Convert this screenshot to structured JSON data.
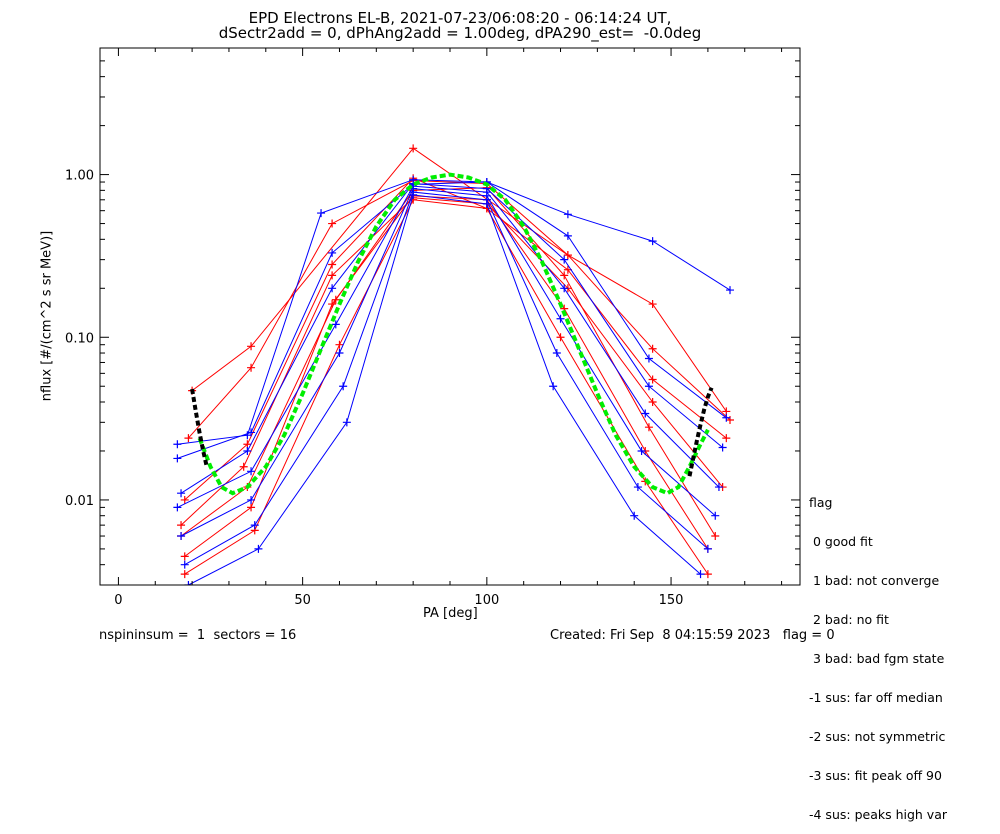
{
  "header": {
    "title_line1": "EPD Electrons EL-B, 2021-07-23/06:08:20 - 06:14:24 UT,",
    "title_line2": "dSectr2add = 0, dPhAng2add = 1.00deg, dPA290_est=  -0.0deg"
  },
  "footer": {
    "left": "nspininsum =  1  sectors = 16",
    "right": "Created: Fri Sep  8 04:15:59 2023   flag = 0"
  },
  "legend": {
    "title": "flag",
    "items": [
      " 0 good fit",
      " 1 bad: not converge",
      " 2 bad: no fit",
      " 3 bad: bad fgm state",
      "-1 sus: far off median",
      "-2 sus: not symmetric",
      "-3 sus: fit peak off 90",
      "-4 sus: peaks high var"
    ]
  },
  "chart_data": {
    "type": "line",
    "title": "EPD Electrons EL-B, 2021-07-23/06:08:20 - 06:14:24 UT,",
    "subtitle": "dSectr2add = 0, dPhAng2add = 1.00deg, dPA290_est=  -0.0deg",
    "xlabel": "PA [deg]",
    "ylabel": "nflux [#/(cm^2 s sr MeV)]",
    "xlim": [
      -5,
      185
    ],
    "ylim": [
      0.003,
      6
    ],
    "y_scale": "log",
    "x_ticks": [
      0,
      50,
      100,
      150
    ],
    "x_tick_labels": [
      "0",
      "50",
      "100",
      "150"
    ],
    "y_ticks": [
      0.01,
      0.1,
      1.0
    ],
    "y_tick_labels": [
      "0.01",
      "0.10",
      "1.00"
    ],
    "grid": false,
    "colors": {
      "blue": "#0000ff",
      "red": "#ff0000",
      "fit_green": "#00ee00",
      "fit_black": "#000000"
    },
    "fit_curve": {
      "color": "green",
      "style": "dashed",
      "pa": [
        22,
        25,
        28,
        31,
        35,
        40,
        45,
        50,
        55,
        60,
        65,
        70,
        75,
        80,
        85,
        90,
        95,
        100,
        105,
        110,
        115,
        120,
        125,
        130,
        135,
        140,
        145,
        149,
        152,
        155,
        158,
        160
      ],
      "flux": [
        0.024,
        0.016,
        0.012,
        0.011,
        0.012,
        0.016,
        0.025,
        0.045,
        0.085,
        0.16,
        0.29,
        0.48,
        0.7,
        0.87,
        0.96,
        1.0,
        0.96,
        0.87,
        0.7,
        0.48,
        0.29,
        0.16,
        0.085,
        0.045,
        0.025,
        0.016,
        0.012,
        0.011,
        0.012,
        0.016,
        0.022,
        0.027
      ]
    },
    "fit_tails": {
      "color": "black",
      "style": "dashed",
      "segments": [
        {
          "pa": [
            20,
            21,
            22,
            23,
            24
          ],
          "flux": [
            0.048,
            0.035,
            0.026,
            0.02,
            0.016
          ]
        },
        {
          "pa": [
            155,
            156,
            157,
            158,
            159,
            160,
            161
          ],
          "flux": [
            0.014,
            0.018,
            0.023,
            0.029,
            0.036,
            0.043,
            0.049
          ]
        }
      ]
    },
    "series": [
      {
        "color": "red",
        "pa": [
          20,
          36,
          80,
          122,
          145,
          165
        ],
        "flux": [
          0.047,
          0.088,
          1.45,
          0.32,
          0.16,
          0.035
        ]
      },
      {
        "color": "red",
        "pa": [
          19,
          36,
          58,
          80,
          100,
          122,
          145,
          166
        ],
        "flux": [
          0.024,
          0.065,
          0.5,
          0.92,
          0.88,
          0.32,
          0.085,
          0.031
        ]
      },
      {
        "color": "red",
        "pa": [
          18,
          35,
          58,
          80,
          100,
          122,
          145,
          165
        ],
        "flux": [
          0.01,
          0.022,
          0.28,
          0.95,
          0.62,
          0.26,
          0.055,
          0.024
        ]
      },
      {
        "color": "red",
        "pa": [
          17,
          34,
          58,
          80,
          100,
          122,
          145,
          164
        ],
        "flux": [
          0.007,
          0.016,
          0.24,
          0.72,
          0.66,
          0.2,
          0.04,
          0.012
        ]
      },
      {
        "color": "red",
        "pa": [
          17,
          35,
          59,
          80,
          100,
          121,
          144,
          162
        ],
        "flux": [
          0.006,
          0.012,
          0.17,
          0.8,
          0.83,
          0.24,
          0.028,
          0.006
        ]
      },
      {
        "color": "red",
        "pa": [
          18,
          36,
          58,
          80,
          100,
          121,
          143,
          160
        ],
        "flux": [
          0.0045,
          0.009,
          0.16,
          0.74,
          0.7,
          0.15,
          0.02,
          0.005
        ]
      },
      {
        "color": "red",
        "pa": [
          18,
          37,
          60,
          80,
          100,
          120,
          143,
          160
        ],
        "flux": [
          0.0035,
          0.0065,
          0.09,
          0.7,
          0.62,
          0.1,
          0.013,
          0.0035
        ]
      },
      {
        "color": "blue",
        "pa": [
          16,
          35,
          55,
          80,
          100,
          122,
          145,
          166
        ],
        "flux": [
          0.022,
          0.025,
          0.58,
          0.93,
          0.9,
          0.57,
          0.39,
          0.195
        ]
      },
      {
        "color": "blue",
        "pa": [
          16,
          36,
          58,
          80,
          100,
          122,
          144,
          165
        ],
        "flux": [
          0.018,
          0.026,
          0.33,
          0.87,
          0.9,
          0.42,
          0.074,
          0.032
        ]
      },
      {
        "color": "blue",
        "pa": [
          17,
          35,
          58,
          80,
          100,
          121,
          144,
          164
        ],
        "flux": [
          0.011,
          0.02,
          0.2,
          0.88,
          0.82,
          0.3,
          0.05,
          0.021
        ]
      },
      {
        "color": "blue",
        "pa": [
          16,
          36,
          59,
          80,
          100,
          121,
          143,
          163
        ],
        "flux": [
          0.009,
          0.015,
          0.12,
          0.85,
          0.78,
          0.2,
          0.034,
          0.012
        ]
      },
      {
        "color": "blue",
        "pa": [
          17,
          36,
          60,
          80,
          100,
          120,
          142,
          162
        ],
        "flux": [
          0.006,
          0.01,
          0.08,
          0.82,
          0.74,
          0.13,
          0.02,
          0.008
        ]
      },
      {
        "color": "blue",
        "pa": [
          18,
          37,
          61,
          80,
          100,
          119,
          141,
          160
        ],
        "flux": [
          0.004,
          0.007,
          0.05,
          0.78,
          0.7,
          0.08,
          0.012,
          0.005
        ]
      },
      {
        "color": "blue",
        "pa": [
          19,
          38,
          62,
          80,
          100,
          118,
          140,
          158
        ],
        "flux": [
          0.003,
          0.005,
          0.03,
          0.75,
          0.66,
          0.05,
          0.008,
          0.0035
        ]
      }
    ]
  }
}
